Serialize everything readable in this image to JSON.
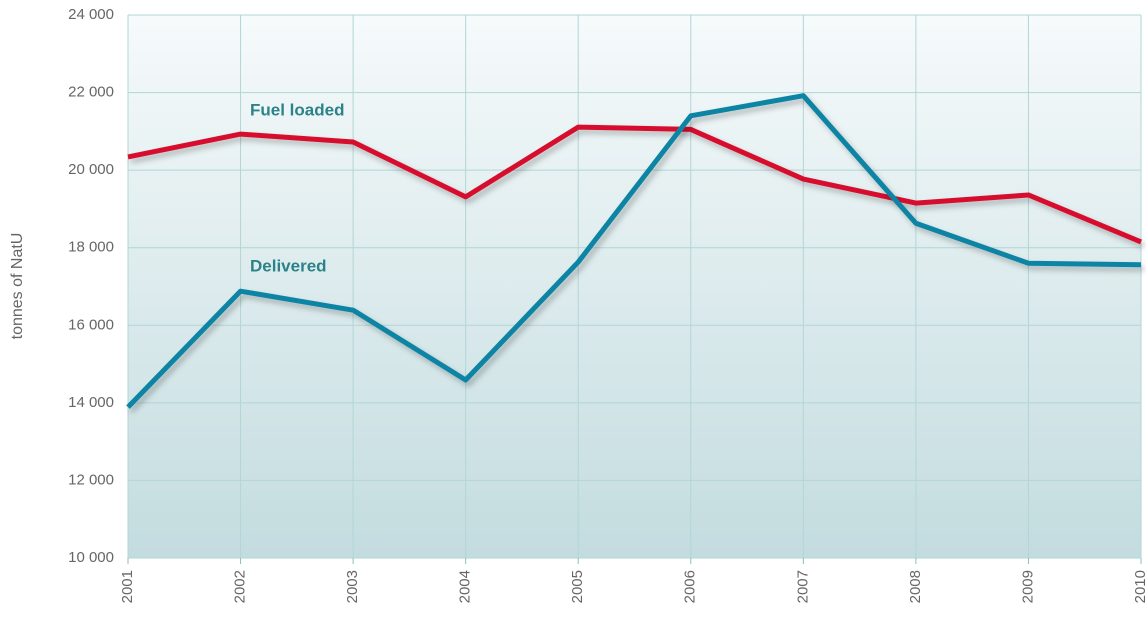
{
  "chart_data": {
    "type": "line",
    "y_label": "tonnes of NatU",
    "categories": [
      "2001",
      "2002",
      "2003",
      "2004",
      "2005",
      "2006",
      "2007",
      "2008",
      "2009",
      "2010"
    ],
    "series": [
      {
        "name": "Fuel loaded",
        "color": "#d7102e",
        "values": [
          20340,
          20930,
          20725,
          19310,
          21110,
          21050,
          19770,
          19150,
          19360,
          18150
        ]
      },
      {
        "name": "Delivered",
        "color": "#0a84a4",
        "values": [
          13890,
          16880,
          16390,
          14590,
          17630,
          21400,
          21920,
          18630,
          17600,
          17560
        ]
      }
    ],
    "ylim": [
      10000,
      24000
    ],
    "yticks": [
      {
        "value": 10000,
        "label": "10 000"
      },
      {
        "value": 12000,
        "label": "12 000"
      },
      {
        "value": 14000,
        "label": "14 000"
      },
      {
        "value": 16000,
        "label": "16 000"
      },
      {
        "value": 18000,
        "label": "18 000"
      },
      {
        "value": 20000,
        "label": "20 000"
      },
      {
        "value": 22000,
        "label": "22 000"
      },
      {
        "value": 24000,
        "label": "24 000"
      }
    ],
    "grid": true,
    "label_color": "#2b8389"
  }
}
